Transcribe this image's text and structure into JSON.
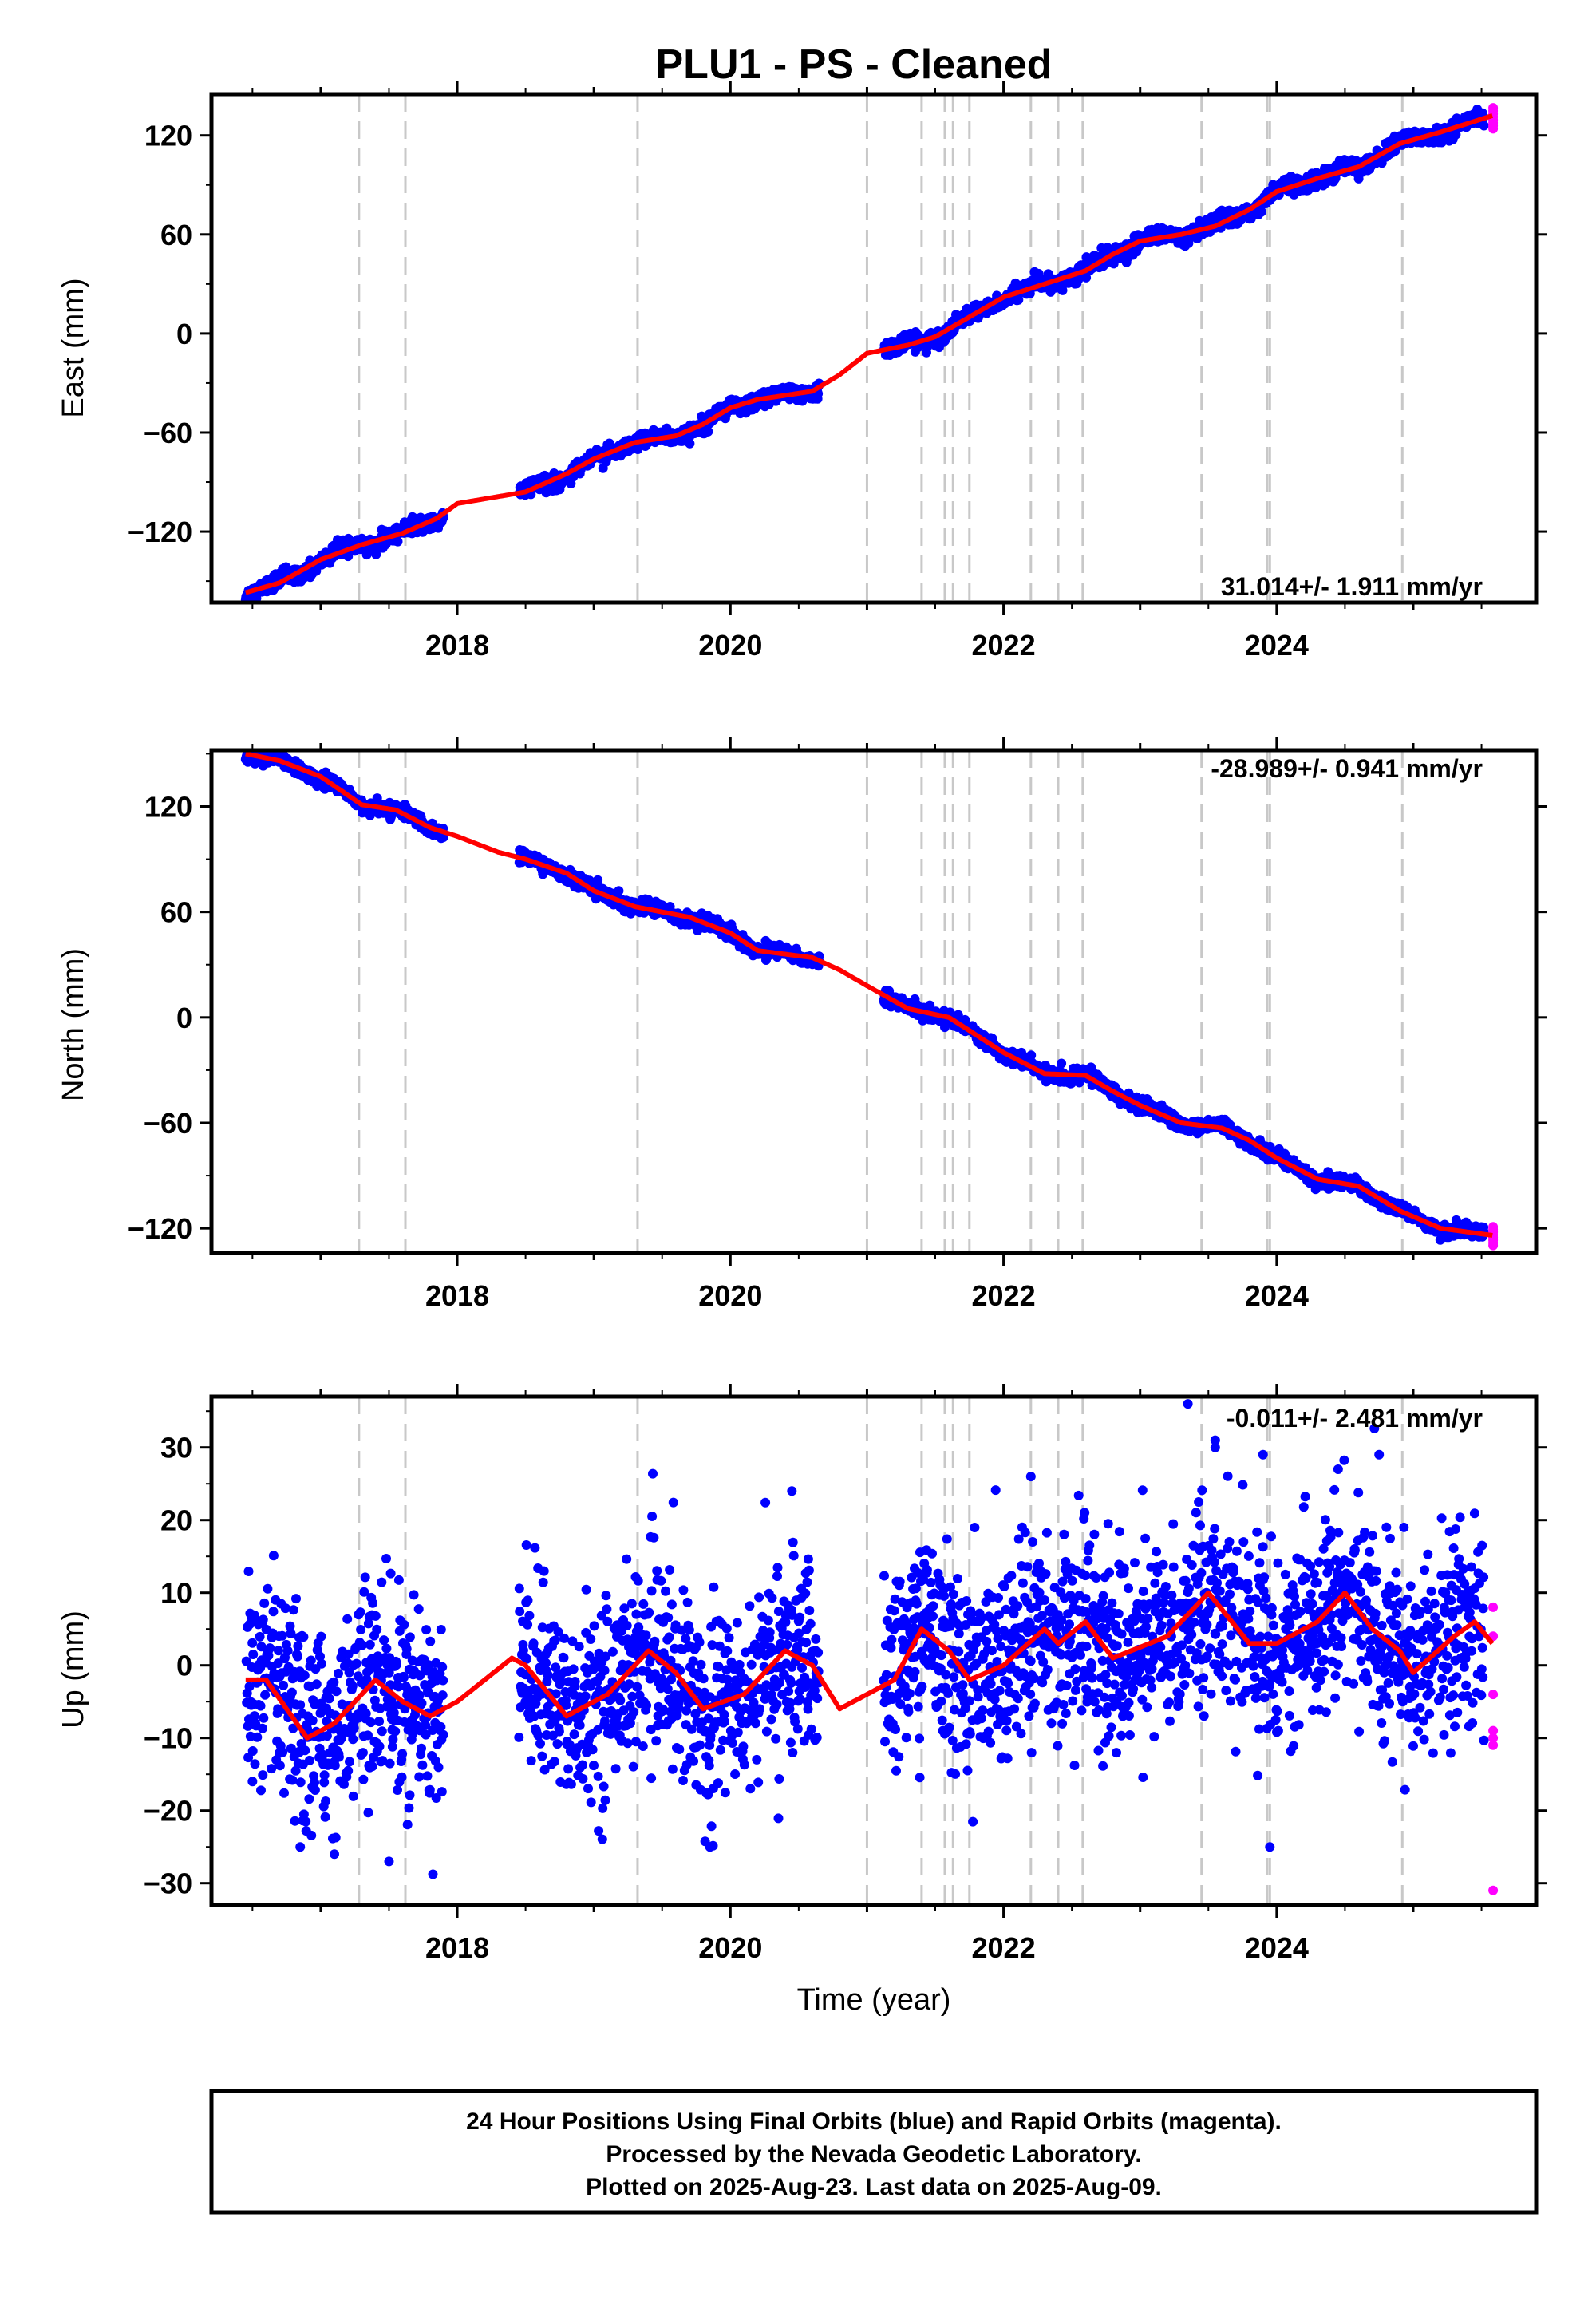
{
  "chart_data": {
    "type": "scatter",
    "title": "PLU1  - PS - Cleaned",
    "xlabel": "Time (year)",
    "x_ticks": [
      2018,
      2020,
      2022,
      2024
    ],
    "xlim": [
      2016.2,
      2025.9
    ],
    "colors": {
      "final": "#0000ff",
      "rapid": "#ff00ff",
      "model": "#ff0000",
      "steps": "#c8c8c8"
    },
    "steps": [
      2017.28,
      2017.62,
      2019.32,
      2021.0,
      2021.4,
      2021.57,
      2021.63,
      2021.75,
      2022.2,
      2022.4,
      2022.58,
      2023.45,
      2023.93,
      2023.95,
      2024.92
    ],
    "gaps": [
      [
        2017.9,
        2018.45
      ],
      [
        2020.65,
        2021.12
      ]
    ],
    "data_start": 2016.45,
    "data_end": 2025.58,
    "rapid_start": 2025.52,
    "legend": "none",
    "panels": [
      {
        "ylabel": "East (mm)",
        "ylim": [
          -163,
          145
        ],
        "y_ticks": [
          -120,
          -60,
          0,
          60,
          120
        ],
        "rate": "31.014+/- 1.911 mm/yr",
        "rate_position": "bottom-right",
        "noise": 2.2,
        "model": [
          [
            2016.45,
            -157
          ],
          [
            2016.7,
            -151
          ],
          [
            2017.0,
            -137
          ],
          [
            2017.3,
            -128
          ],
          [
            2017.6,
            -121
          ],
          [
            2017.85,
            -112
          ],
          [
            2018.0,
            -103
          ],
          [
            2018.5,
            -96
          ],
          [
            2018.8,
            -85
          ],
          [
            2019.0,
            -76
          ],
          [
            2019.3,
            -66
          ],
          [
            2019.6,
            -62
          ],
          [
            2019.8,
            -55
          ],
          [
            2020.0,
            -45
          ],
          [
            2020.2,
            -40
          ],
          [
            2020.6,
            -35
          ],
          [
            2020.8,
            -25
          ],
          [
            2021.0,
            -12
          ],
          [
            2021.3,
            -7
          ],
          [
            2021.5,
            -2
          ],
          [
            2021.75,
            10
          ],
          [
            2022.0,
            22
          ],
          [
            2022.3,
            30
          ],
          [
            2022.6,
            38
          ],
          [
            2022.8,
            48
          ],
          [
            2023.0,
            56
          ],
          [
            2023.3,
            60
          ],
          [
            2023.55,
            65
          ],
          [
            2023.8,
            75
          ],
          [
            2024.0,
            86
          ],
          [
            2024.3,
            94
          ],
          [
            2024.6,
            101
          ],
          [
            2024.9,
            115
          ],
          [
            2025.2,
            122
          ],
          [
            2025.58,
            132
          ]
        ],
        "wiggle": 2.0
      },
      {
        "ylabel": "North (mm)",
        "ylim": [
          -134,
          152
        ],
        "y_ticks": [
          -120,
          -60,
          0,
          60,
          120
        ],
        "rate": "-28.989+/- 0.941 mm/yr",
        "rate_position": "top-right",
        "noise": 1.8,
        "model": [
          [
            2016.45,
            150
          ],
          [
            2016.7,
            146
          ],
          [
            2017.0,
            137
          ],
          [
            2017.3,
            121
          ],
          [
            2017.55,
            118
          ],
          [
            2017.8,
            108
          ],
          [
            2018.0,
            103
          ],
          [
            2018.3,
            94
          ],
          [
            2018.5,
            90
          ],
          [
            2018.8,
            82
          ],
          [
            2019.0,
            72
          ],
          [
            2019.3,
            63
          ],
          [
            2019.7,
            57
          ],
          [
            2020.0,
            48
          ],
          [
            2020.2,
            38
          ],
          [
            2020.6,
            34
          ],
          [
            2020.8,
            27
          ],
          [
            2021.0,
            18
          ],
          [
            2021.3,
            5
          ],
          [
            2021.6,
            0
          ],
          [
            2021.8,
            -10
          ],
          [
            2022.0,
            -20
          ],
          [
            2022.3,
            -32
          ],
          [
            2022.6,
            -33
          ],
          [
            2022.8,
            -42
          ],
          [
            2023.0,
            -50
          ],
          [
            2023.3,
            -60
          ],
          [
            2023.6,
            -63
          ],
          [
            2023.8,
            -70
          ],
          [
            2024.0,
            -80
          ],
          [
            2024.3,
            -92
          ],
          [
            2024.6,
            -96
          ],
          [
            2024.9,
            -110
          ],
          [
            2025.2,
            -120
          ],
          [
            2025.58,
            -124
          ]
        ],
        "wiggle": 1.5
      },
      {
        "ylabel": "Up (mm)",
        "ylim": [
          -33,
          37
        ],
        "y_ticks": [
          -30,
          -20,
          -10,
          0,
          10,
          20,
          30
        ],
        "rate": "-0.011+/- 2.481 mm/yr",
        "rate_position": "top-right",
        "noise": 6.5,
        "model": [
          [
            2016.45,
            -2
          ],
          [
            2016.6,
            -2
          ],
          [
            2016.9,
            -10
          ],
          [
            2017.1,
            -8
          ],
          [
            2017.4,
            -2
          ],
          [
            2017.6,
            -5
          ],
          [
            2017.8,
            -7
          ],
          [
            2018.0,
            -5
          ],
          [
            2018.2,
            -2
          ],
          [
            2018.4,
            1
          ],
          [
            2018.5,
            0
          ],
          [
            2018.8,
            -7
          ],
          [
            2019.1,
            -4
          ],
          [
            2019.4,
            2
          ],
          [
            2019.6,
            -1
          ],
          [
            2019.8,
            -6
          ],
          [
            2020.1,
            -4
          ],
          [
            2020.4,
            2
          ],
          [
            2020.6,
            0
          ],
          [
            2020.8,
            -6
          ],
          [
            2021.0,
            -4
          ],
          [
            2021.2,
            -2
          ],
          [
            2021.4,
            5
          ],
          [
            2021.6,
            2
          ],
          [
            2021.75,
            -2
          ],
          [
            2022.0,
            0
          ],
          [
            2022.3,
            5
          ],
          [
            2022.4,
            3
          ],
          [
            2022.6,
            6
          ],
          [
            2022.8,
            1
          ],
          [
            2023.2,
            4
          ],
          [
            2023.5,
            10
          ],
          [
            2023.8,
            3
          ],
          [
            2024.0,
            3
          ],
          [
            2024.3,
            6
          ],
          [
            2024.5,
            10
          ],
          [
            2024.7,
            5
          ],
          [
            2024.9,
            2
          ],
          [
            2025.0,
            -1
          ],
          [
            2025.3,
            4
          ],
          [
            2025.45,
            6
          ],
          [
            2025.58,
            3
          ]
        ],
        "wiggle": 0.0,
        "outliers": [
          [
            2023.35,
            36
          ],
          [
            2023.55,
            31
          ],
          [
            2023.55,
            30
          ],
          [
            2023.9,
            29
          ],
          [
            2024.75,
            29
          ],
          [
            2024.45,
            27
          ],
          [
            2016.5,
            -16
          ],
          [
            2016.85,
            -25
          ],
          [
            2017.1,
            -26
          ],
          [
            2017.5,
            -27
          ],
          [
            2019.85,
            -25
          ],
          [
            2023.95,
            -25
          ],
          [
            2020.45,
            24
          ],
          [
            2022.2,
            26
          ]
        ],
        "rapid_values": [
          8,
          4,
          -4,
          -9,
          -10,
          -11,
          -31
        ]
      }
    ]
  },
  "caption": {
    "line1": "24 Hour Positions Using Final Orbits (blue) and Rapid Orbits (magenta).",
    "line2": "Processed by the Nevada Geodetic Laboratory.",
    "line3": "Plotted on 2025-Aug-23. Last data on 2025-Aug-09."
  }
}
